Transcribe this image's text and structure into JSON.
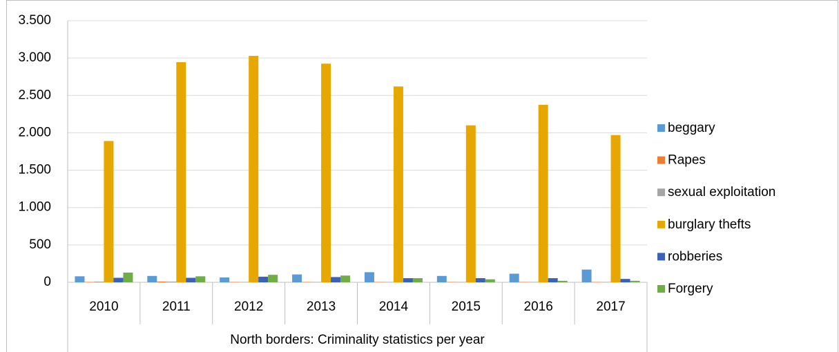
{
  "chart_data": {
    "type": "bar",
    "xlabel": "North borders: Criminality statistics per year",
    "categories": [
      "2010",
      "2011",
      "2012",
      "2013",
      "2014",
      "2015",
      "2016",
      "2017"
    ],
    "series": [
      {
        "name": "beggary",
        "color": "#5B9BD5",
        "values": [
          80,
          85,
          65,
          105,
          135,
          85,
          115,
          170
        ]
      },
      {
        "name": "Rapes",
        "color": "#ED7D31",
        "values": [
          5,
          10,
          5,
          5,
          5,
          5,
          5,
          5
        ]
      },
      {
        "name": "sexual exploitation",
        "color": "#A5A5A5",
        "values": [
          10,
          10,
          5,
          5,
          5,
          5,
          5,
          5
        ]
      },
      {
        "name": "burglary thefts",
        "color": "#E6A800",
        "values": [
          1890,
          2945,
          3030,
          2925,
          2620,
          2100,
          2375,
          1970
        ]
      },
      {
        "name": "robberies",
        "color": "#3A62B8",
        "values": [
          60,
          60,
          75,
          70,
          55,
          55,
          55,
          45
        ]
      },
      {
        "name": "Forgery",
        "color": "#70AD47",
        "values": [
          130,
          80,
          100,
          90,
          55,
          40,
          20,
          20
        ]
      }
    ],
    "ylim": [
      0,
      3500
    ],
    "yticks": [
      0,
      500,
      {
        "value": 1000,
        "label": "1.000"
      },
      {
        "value": 1500,
        "label": "1.500"
      },
      {
        "value": 2000,
        "label": "2.000"
      },
      {
        "value": 2500,
        "label": "2.500"
      },
      {
        "value": 3000,
        "label": "3.000"
      },
      {
        "value": 3500,
        "label": "3.500"
      }
    ],
    "grid": true,
    "legend": "right"
  }
}
